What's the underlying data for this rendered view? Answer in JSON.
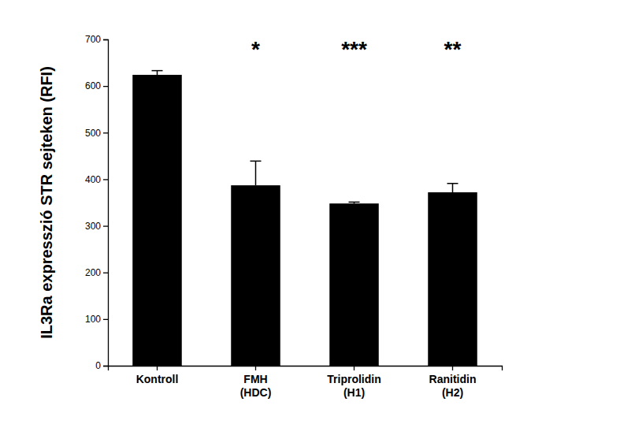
{
  "chart_data": {
    "type": "bar",
    "y_label": "IL3Ra expresszió STR sejteken (RFI)",
    "categories": [
      "Kontroll",
      "FMH\n(HDC)",
      "Triprolidin\n(H1)",
      "Ranitidin\n(H2)"
    ],
    "values": [
      624,
      387,
      348,
      372
    ],
    "errors": [
      9,
      52,
      3,
      19
    ],
    "significance": [
      null,
      "*",
      "***",
      "**"
    ],
    "color": "#000000",
    "ylim": [
      0,
      700
    ],
    "yticks": [
      0,
      100,
      200,
      300,
      400,
      500,
      600,
      700
    ],
    "grid": false
  }
}
